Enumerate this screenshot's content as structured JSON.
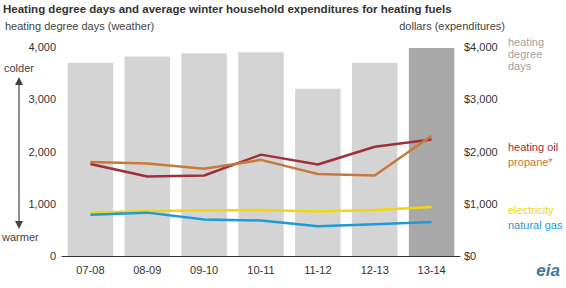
{
  "chart_data": {
    "type": "bar",
    "title": "Heating degree days and average winter household expenditures for heating fuels",
    "y_label": "heating degree days (weather)",
    "y2_label": "dollars (expenditures)",
    "annotations": [
      "colder",
      "warmer"
    ],
    "logo": "eia",
    "categories": [
      "07-08",
      "08-09",
      "09-10",
      "10-11",
      "11-12",
      "12-13",
      "13-14"
    ],
    "ylim": [
      0,
      4000
    ],
    "yticks": [
      0,
      {
        "value": 1000,
        "label": "1,000"
      },
      {
        "value": 2000,
        "label": "2,000"
      },
      {
        "value": 3000,
        "label": "3,000"
      },
      {
        "value": 4000,
        "label": "4,000"
      }
    ],
    "y2lim": [
      0,
      4000
    ],
    "y2ticks": [
      {
        "value": 0,
        "label": "$0"
      },
      {
        "value": 1000,
        "label": "$1,000"
      },
      {
        "value": 2000,
        "label": "$2,000"
      },
      {
        "value": 3000,
        "label": "$3,000"
      },
      {
        "value": 4000,
        "label": "$4,000"
      }
    ],
    "grid": false,
    "legend": "right",
    "series": [
      {
        "name": "heating degree days",
        "type": "bar",
        "colors": [
          "#d4d4d4",
          "#d4d4d4",
          "#d4d4d4",
          "#d4d4d4",
          "#d4d4d4",
          "#d4d4d4",
          "#a8a8a8"
        ],
        "values": [
          3700,
          3820,
          3880,
          3900,
          3200,
          3700,
          3980
        ]
      },
      {
        "name": "heating oil",
        "type": "line",
        "axis": "y2",
        "color": "#9e3039",
        "values": [
          1760,
          1520,
          1540,
          1940,
          1750,
          2090,
          2230
        ]
      },
      {
        "name": "propane*",
        "type": "line",
        "axis": "y2",
        "color": "#c8793a",
        "values": [
          1800,
          1770,
          1670,
          1840,
          1570,
          1540,
          2300
        ]
      },
      {
        "name": "electricity",
        "type": "line",
        "axis": "y2",
        "color": "#f2d511",
        "values": [
          830,
          860,
          870,
          880,
          850,
          880,
          940
        ]
      },
      {
        "name": "natural gas",
        "type": "line",
        "axis": "y2",
        "color": "#1e9bd7",
        "values": [
          790,
          830,
          700,
          680,
          570,
          610,
          650
        ]
      }
    ]
  }
}
